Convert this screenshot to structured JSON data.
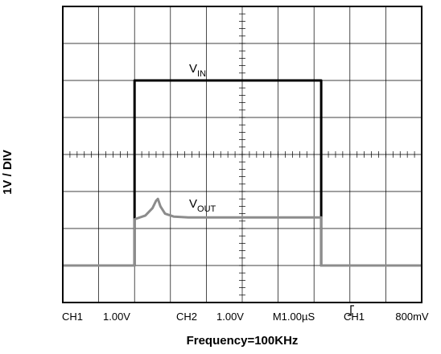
{
  "chart_data": {
    "type": "line",
    "ylabel": "1V / DIV",
    "xlabel": "Frequency=100KHz",
    "xlim": [
      0,
      10
    ],
    "ylim": [
      0,
      8
    ],
    "grid": true,
    "series": [
      {
        "name": "V",
        "sub": "IN",
        "color": "#000000",
        "x": [
          0,
          2,
          2,
          7.2,
          7.2,
          10
        ],
        "values": [
          1,
          1,
          6,
          6,
          1,
          1
        ]
      },
      {
        "name": "V",
        "sub": "OUT",
        "color": "#8c8c8c",
        "x": [
          0,
          2,
          2,
          2.3,
          2.5,
          2.6,
          2.65,
          2.72,
          2.85,
          3.1,
          3.5,
          7.2,
          7.2,
          10
        ],
        "values": [
          1,
          1,
          2.25,
          2.35,
          2.55,
          2.75,
          2.8,
          2.6,
          2.4,
          2.32,
          2.3,
          2.3,
          1,
          1
        ]
      }
    ],
    "status": [
      "CH1",
      "1.00V",
      "CH2",
      "1.00V",
      "M1.00µS",
      "CH1",
      "800mV"
    ]
  }
}
